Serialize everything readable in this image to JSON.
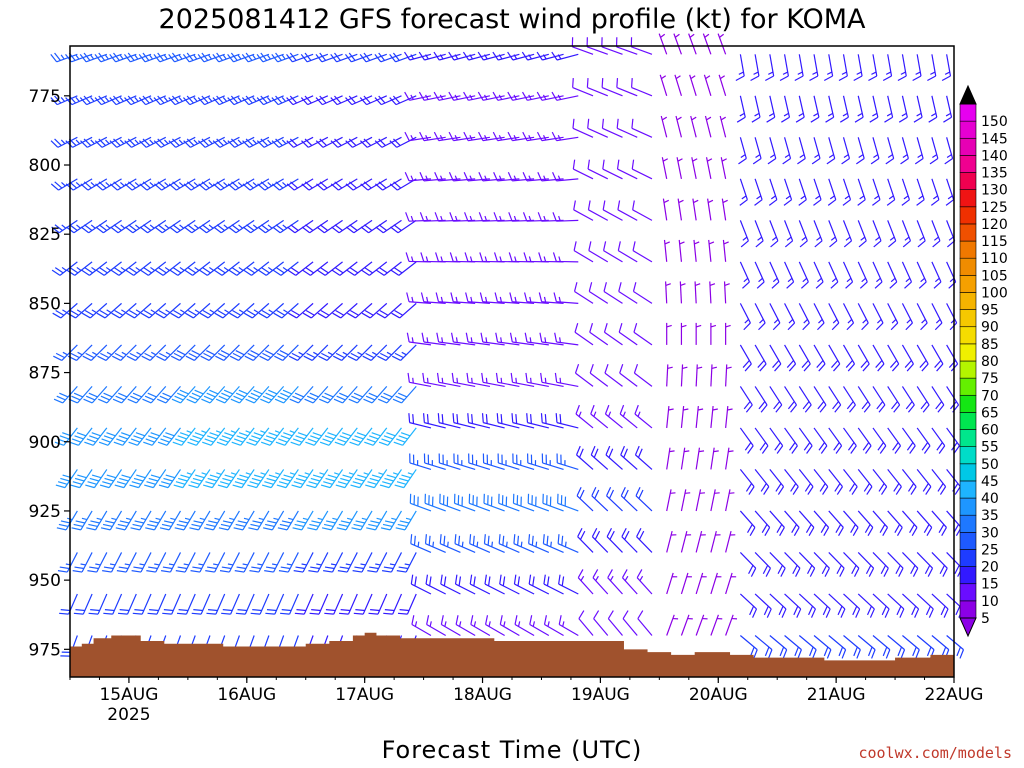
{
  "chart_data": {
    "type": "wind-barb-profile",
    "title": "2025081412 GFS forecast wind profile (kt) for KOMA",
    "xlabel": "Forecast Time (UTC)",
    "ylabel": "",
    "credit": "coolwx.com/models",
    "x_ticks": [
      {
        "label": "15AUG",
        "sub": "2025",
        "day": 15
      },
      {
        "label": "16AUG",
        "sub": "",
        "day": 16
      },
      {
        "label": "17AUG",
        "sub": "",
        "day": 17
      },
      {
        "label": "18AUG",
        "sub": "",
        "day": 18
      },
      {
        "label": "19AUG",
        "sub": "",
        "day": 19
      },
      {
        "label": "20AUG",
        "sub": "",
        "day": 20
      },
      {
        "label": "21AUG",
        "sub": "",
        "day": 21
      },
      {
        "label": "22AUG",
        "sub": "",
        "day": 22
      }
    ],
    "xlim_days": [
      14.5,
      22.0
    ],
    "y_ticks": [
      "775",
      "800",
      "825",
      "850",
      "875",
      "900",
      "925",
      "950",
      "975"
    ],
    "ylim_hpa": [
      757,
      985
    ],
    "pressure_levels": [
      760,
      775,
      790,
      805,
      820,
      835,
      850,
      865,
      880,
      895,
      910,
      925,
      940,
      955,
      970
    ],
    "colorbar": {
      "ticks": [
        "5",
        "10",
        "15",
        "20",
        "25",
        "30",
        "35",
        "40",
        "45",
        "50",
        "55",
        "60",
        "65",
        "70",
        "75",
        "80",
        "85",
        "90",
        "95",
        "100",
        "105",
        "110",
        "115",
        "120",
        "125",
        "130",
        "135",
        "140",
        "145",
        "150"
      ],
      "colors": [
        "#8c00e6",
        "#6a0dff",
        "#3219ff",
        "#1e3cff",
        "#1e5aff",
        "#1e78ff",
        "#1e96ff",
        "#1eb4ff",
        "#00c8e6",
        "#00dcc8",
        "#00e68c",
        "#00e650",
        "#14e614",
        "#64f000",
        "#b4f500",
        "#f0f000",
        "#f5dc00",
        "#f5c800",
        "#f5b400",
        "#f5a000",
        "#f08c00",
        "#f07800",
        "#f05000",
        "#f03000",
        "#f01414",
        "#f00050",
        "#f00090",
        "#e600b4",
        "#e600d2",
        "#e600f0"
      ],
      "extend": "both"
    },
    "terrain_color": "#a0522d",
    "terrain_hpa": [
      {
        "t": 14.5,
        "p": 974
      },
      {
        "t": 14.6,
        "p": 973
      },
      {
        "t": 14.7,
        "p": 971
      },
      {
        "t": 14.85,
        "p": 970
      },
      {
        "t": 15.0,
        "p": 970
      },
      {
        "t": 15.1,
        "p": 972
      },
      {
        "t": 15.3,
        "p": 973
      },
      {
        "t": 15.5,
        "p": 973
      },
      {
        "t": 15.8,
        "p": 974
      },
      {
        "t": 16.0,
        "p": 974
      },
      {
        "t": 16.2,
        "p": 974
      },
      {
        "t": 16.5,
        "p": 973
      },
      {
        "t": 16.7,
        "p": 972
      },
      {
        "t": 16.9,
        "p": 970
      },
      {
        "t": 17.0,
        "p": 969
      },
      {
        "t": 17.1,
        "p": 970
      },
      {
        "t": 17.3,
        "p": 971
      },
      {
        "t": 17.5,
        "p": 971
      },
      {
        "t": 17.7,
        "p": 971
      },
      {
        "t": 17.9,
        "p": 971
      },
      {
        "t": 18.1,
        "p": 972
      },
      {
        "t": 18.3,
        "p": 972
      },
      {
        "t": 18.6,
        "p": 972
      },
      {
        "t": 18.9,
        "p": 972
      },
      {
        "t": 19.0,
        "p": 972
      },
      {
        "t": 19.2,
        "p": 975
      },
      {
        "t": 19.4,
        "p": 976
      },
      {
        "t": 19.6,
        "p": 977
      },
      {
        "t": 19.8,
        "p": 976
      },
      {
        "t": 20.0,
        "p": 976
      },
      {
        "t": 20.1,
        "p": 977
      },
      {
        "t": 20.3,
        "p": 978
      },
      {
        "t": 20.6,
        "p": 978
      },
      {
        "t": 20.9,
        "p": 979
      },
      {
        "t": 21.2,
        "p": 979
      },
      {
        "t": 21.5,
        "p": 978
      },
      {
        "t": 21.8,
        "p": 977
      },
      {
        "t": 22.0,
        "p": 976
      }
    ],
    "wind_regimes": [
      {
        "t0": 14.5,
        "t1": 15.5,
        "dir_top": 250,
        "dir_bot": 200,
        "spd_top": 25,
        "spd_bot": 20,
        "spd_max": 40,
        "jet_hpa": 905
      },
      {
        "t0": 15.5,
        "t1": 16.5,
        "dir_top": 250,
        "dir_bot": 200,
        "spd_top": 25,
        "spd_bot": 20,
        "spd_max": 45,
        "jet_hpa": 900
      },
      {
        "t0": 16.5,
        "t1": 17.5,
        "dir_top": 250,
        "dir_bot": 200,
        "spd_top": 20,
        "spd_bot": 15,
        "spd_max": 45,
        "jet_hpa": 905
      },
      {
        "t0": 17.5,
        "t1": 18.9,
        "dir_top": 255,
        "dir_bot": 300,
        "spd_top": 15,
        "spd_bot": 10,
        "spd_max": 30,
        "jet_hpa": 925
      },
      {
        "t0": 18.9,
        "t1": 19.5,
        "dir_top": 290,
        "dir_bot": 320,
        "spd_top": 10,
        "spd_bot": 10,
        "spd_max": 20,
        "jet_hpa": 925
      },
      {
        "t0": 19.5,
        "t1": 20.15,
        "dir_top": 340,
        "dir_bot": 20,
        "spd_top": 5,
        "spd_bot": 5,
        "spd_max": 5,
        "jet_hpa": 900
      },
      {
        "t0": 20.15,
        "t1": 22.0,
        "dir_top": 170,
        "dir_bot": 130,
        "spd_top": 15,
        "spd_bot": 20,
        "spd_max": 20,
        "jet_hpa": 950
      }
    ],
    "barb_step_days": 0.125
  }
}
